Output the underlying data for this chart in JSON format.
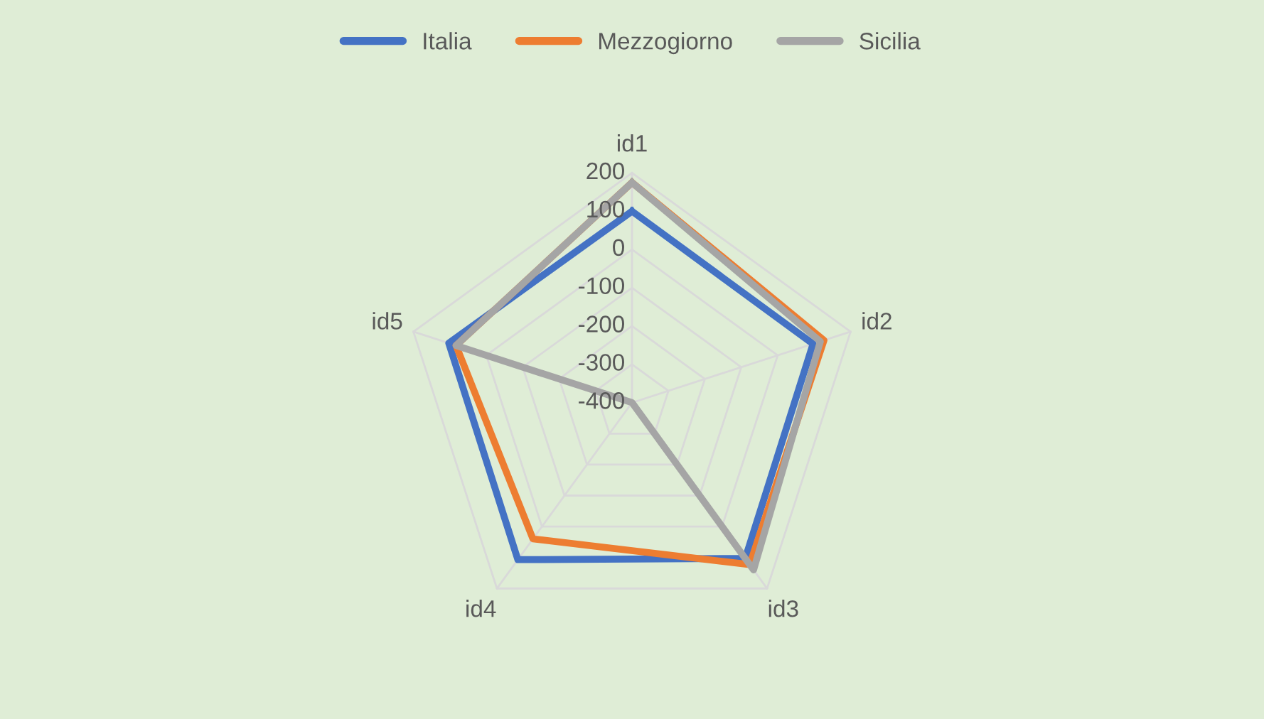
{
  "chart_data": {
    "type": "radar",
    "categories": [
      "id1",
      "id2",
      "id3",
      "id4",
      "id5"
    ],
    "series": [
      {
        "name": "Italia",
        "color": "#4472c4",
        "values": [
          100,
          97,
          103,
          107,
          103
        ]
      },
      {
        "name": "Mezzogiorno",
        "color": "#ed7d31",
        "values": [
          175,
          127,
          123,
          40,
          83
        ]
      },
      {
        "name": "Sicilia",
        "color": "#a5a5a5",
        "values": [
          175,
          117,
          140,
          -400,
          83
        ]
      }
    ],
    "ylim": [
      -400,
      200
    ],
    "yticks": [
      -400,
      -300,
      -200,
      -100,
      0,
      100,
      200
    ],
    "legend": "top",
    "grid": true,
    "marker": "none",
    "line_style": "solid"
  }
}
